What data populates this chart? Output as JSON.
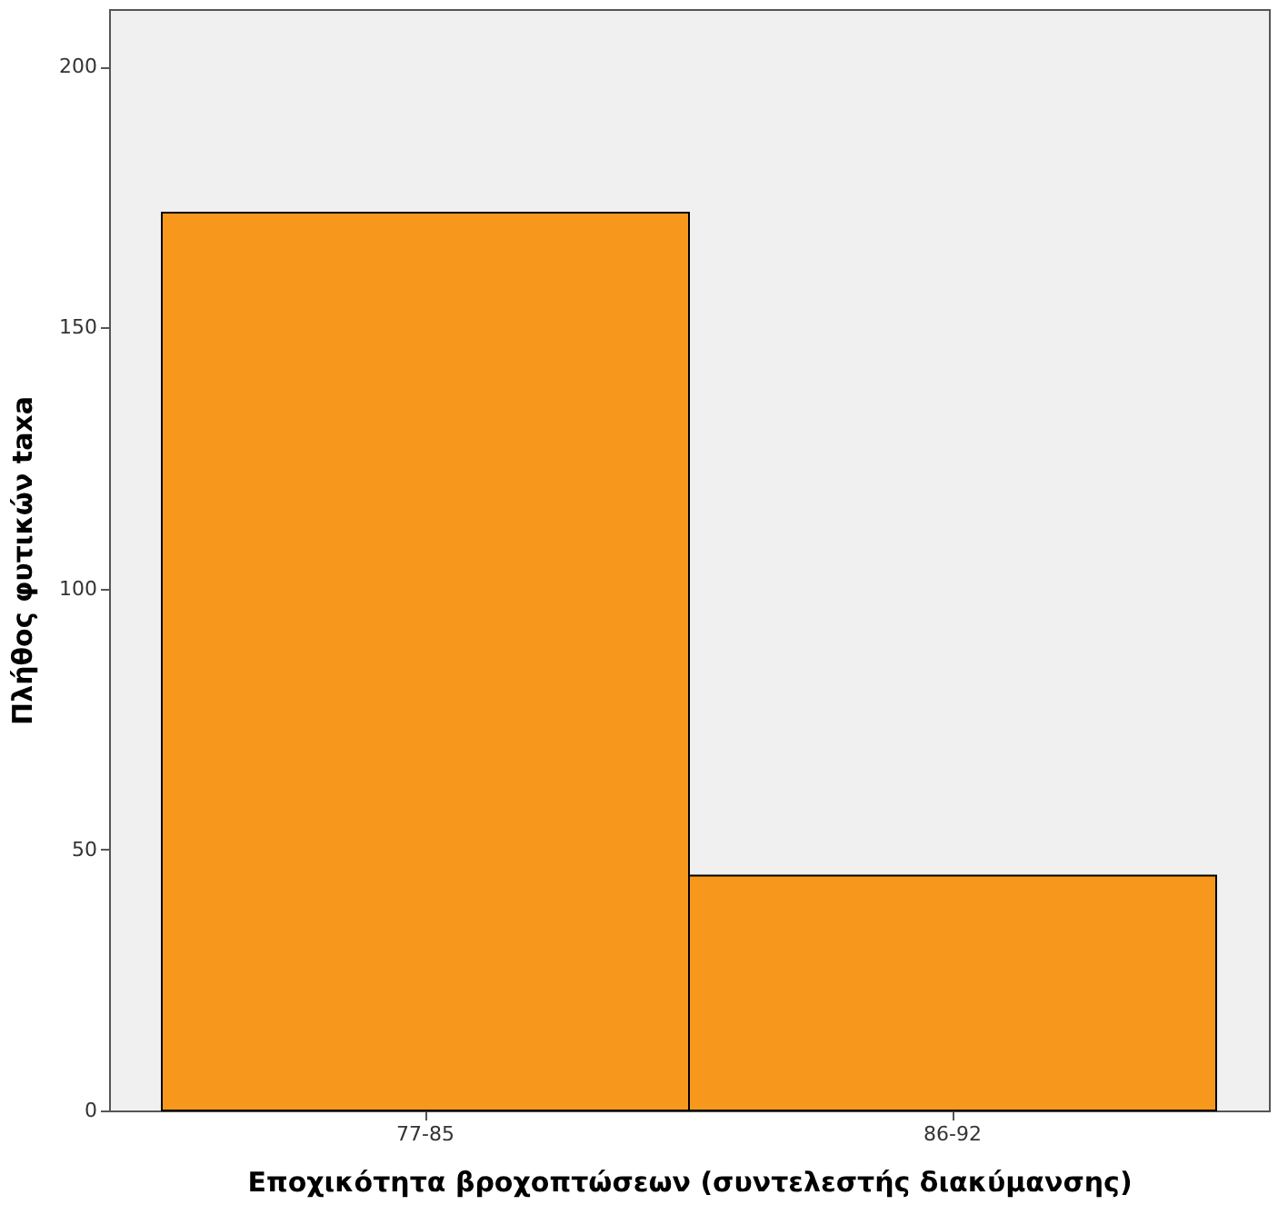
{
  "chart_data": {
    "type": "bar",
    "categories": [
      "77-85",
      "86-92"
    ],
    "values": [
      172,
      45
    ],
    "color": "#f7981d",
    "xlabel": "Εποχικότητα βροχοπτώσεων  (συντελεστής διακύμανσης)",
    "ylabel": "Πλήθος φυτικών taxa",
    "ylim": [
      0,
      211
    ],
    "yticks": [
      0,
      50,
      100,
      150,
      200
    ],
    "grid": false
  }
}
